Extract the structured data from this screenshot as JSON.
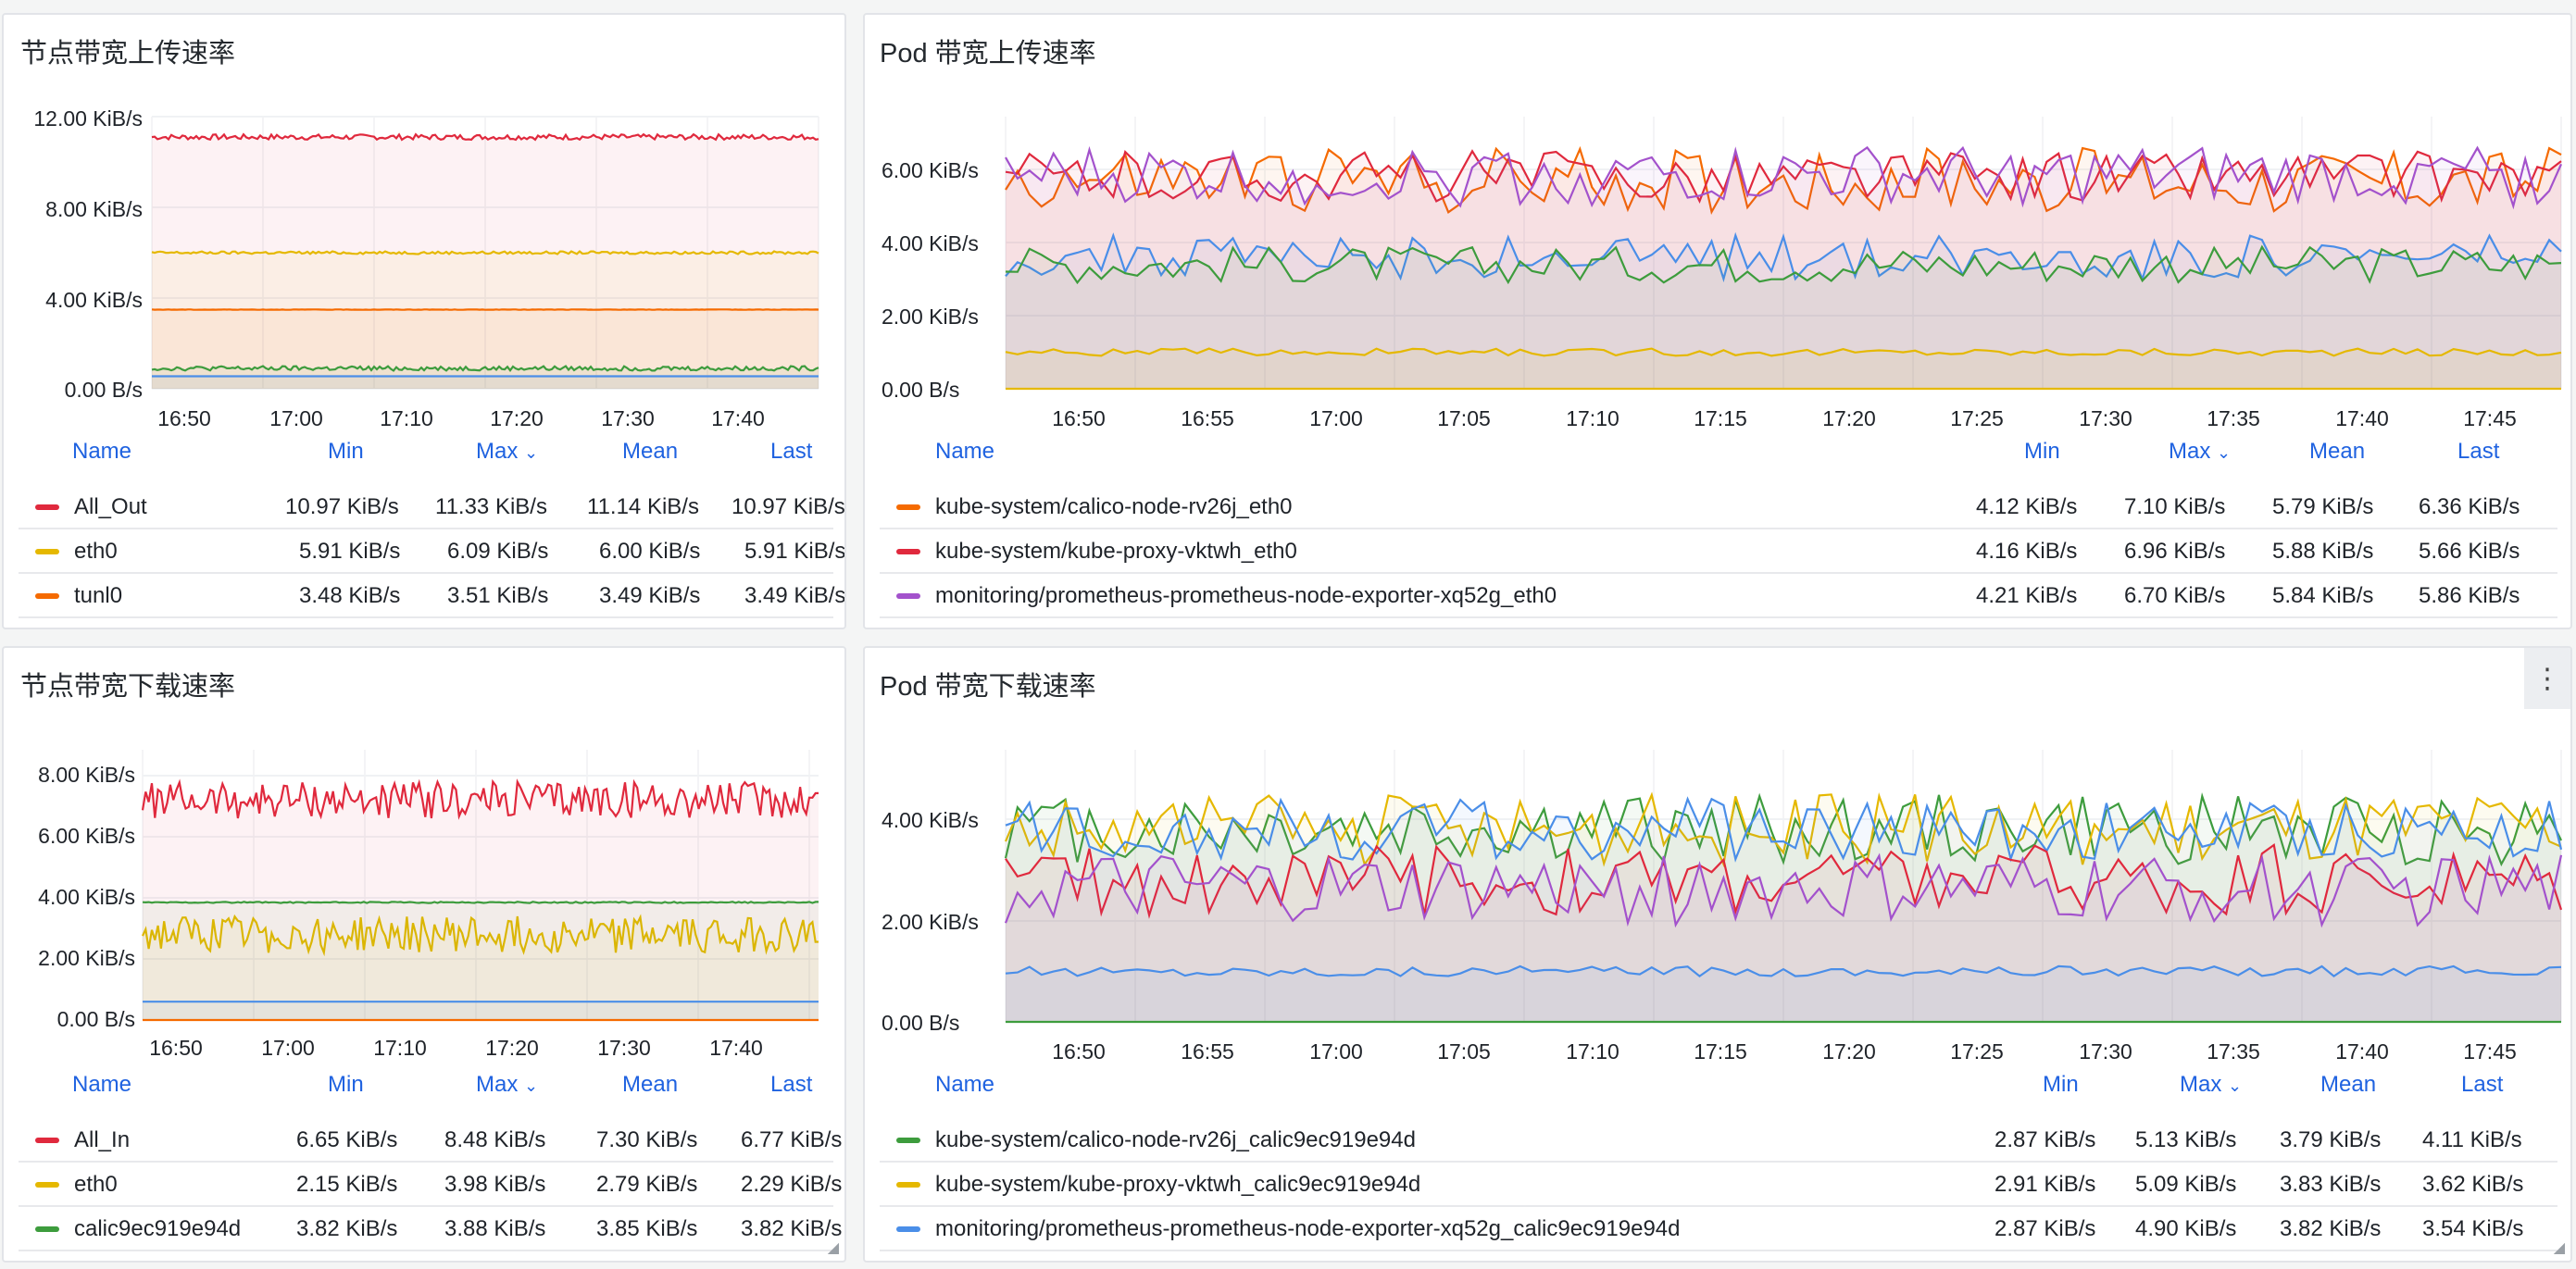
{
  "panels": [
    {
      "id": "p1",
      "title": "节点带宽上传速率",
      "yticks": [
        "12.00 KiB/s",
        "8.00 KiB/s",
        "4.00 KiB/s",
        "0.00 B/s"
      ],
      "xticks": [
        "16:50",
        "17:00",
        "17:10",
        "17:20",
        "17:30",
        "17:40"
      ],
      "headers": {
        "name": "Name",
        "min": "Min",
        "max": "Max",
        "mean": "Mean",
        "last": "Last"
      },
      "rows": [
        {
          "name": "All_Out",
          "color": "#e0293d",
          "min": "10.97 KiB/s",
          "max": "11.33 KiB/s",
          "mean": "11.14 KiB/s",
          "last": "10.97 KiB/s"
        },
        {
          "name": "eth0",
          "color": "#e5b800",
          "min": "5.91 KiB/s",
          "max": "6.09 KiB/s",
          "mean": "6.00 KiB/s",
          "last": "5.91 KiB/s"
        },
        {
          "name": "tunl0",
          "color": "#f56a00",
          "min": "3.48 KiB/s",
          "max": "3.51 KiB/s",
          "mean": "3.49 KiB/s",
          "last": "3.49 KiB/s"
        }
      ]
    },
    {
      "id": "p2",
      "title": "Pod 带宽上传速率",
      "yticks": [
        "6.00 KiB/s",
        "4.00 KiB/s",
        "2.00 KiB/s",
        "0.00 B/s"
      ],
      "xticks": [
        "16:50",
        "16:55",
        "17:00",
        "17:05",
        "17:10",
        "17:15",
        "17:20",
        "17:25",
        "17:30",
        "17:35",
        "17:40",
        "17:45"
      ],
      "headers": {
        "name": "Name",
        "min": "Min",
        "max": "Max",
        "mean": "Mean",
        "last": "Last"
      },
      "rows": [
        {
          "name": "kube-system/calico-node-rv26j_eth0",
          "color": "#f56a00",
          "min": "4.12 KiB/s",
          "max": "7.10 KiB/s",
          "mean": "5.79 KiB/s",
          "last": "6.36 KiB/s"
        },
        {
          "name": "kube-system/kube-proxy-vktwh_eth0",
          "color": "#e0293d",
          "min": "4.16 KiB/s",
          "max": "6.96 KiB/s",
          "mean": "5.88 KiB/s",
          "last": "5.66 KiB/s"
        },
        {
          "name": "monitoring/prometheus-prometheus-node-exporter-xq52g_eth0",
          "color": "#a352cc",
          "min": "4.21 KiB/s",
          "max": "6.70 KiB/s",
          "mean": "5.84 KiB/s",
          "last": "5.86 KiB/s"
        }
      ]
    },
    {
      "id": "p3",
      "title": "节点带宽下载速率",
      "yticks": [
        "8.00 KiB/s",
        "6.00 KiB/s",
        "4.00 KiB/s",
        "2.00 KiB/s",
        "0.00 B/s"
      ],
      "xticks": [
        "16:50",
        "17:00",
        "17:10",
        "17:20",
        "17:30",
        "17:40"
      ],
      "headers": {
        "name": "Name",
        "min": "Min",
        "max": "Max",
        "mean": "Mean",
        "last": "Last"
      },
      "rows": [
        {
          "name": "All_In",
          "color": "#e0293d",
          "min": "6.65 KiB/s",
          "max": "8.48 KiB/s",
          "mean": "7.30 KiB/s",
          "last": "6.77 KiB/s"
        },
        {
          "name": "eth0",
          "color": "#e5b800",
          "min": "2.15 KiB/s",
          "max": "3.98 KiB/s",
          "mean": "2.79 KiB/s",
          "last": "2.29 KiB/s"
        },
        {
          "name": "calic9ec919e94d",
          "color": "#3d9c3d",
          "min": "3.82 KiB/s",
          "max": "3.88 KiB/s",
          "mean": "3.85 KiB/s",
          "last": "3.82 KiB/s"
        }
      ]
    },
    {
      "id": "p4",
      "title": "Pod 带宽下载速率",
      "yticks": [
        "4.00 KiB/s",
        "2.00 KiB/s",
        "0.00 B/s"
      ],
      "xticks": [
        "16:50",
        "16:55",
        "17:00",
        "17:05",
        "17:10",
        "17:15",
        "17:20",
        "17:25",
        "17:30",
        "17:35",
        "17:40",
        "17:45"
      ],
      "headers": {
        "name": "Name",
        "min": "Min",
        "max": "Max",
        "mean": "Mean",
        "last": "Last"
      },
      "rows": [
        {
          "name": "kube-system/calico-node-rv26j_calic9ec919e94d",
          "color": "#3d9c3d",
          "min": "2.87 KiB/s",
          "max": "5.13 KiB/s",
          "mean": "3.79 KiB/s",
          "last": "4.11 KiB/s"
        },
        {
          "name": "kube-system/kube-proxy-vktwh_calic9ec919e94d",
          "color": "#e5b800",
          "min": "2.91 KiB/s",
          "max": "5.09 KiB/s",
          "mean": "3.83 KiB/s",
          "last": "3.62 KiB/s"
        },
        {
          "name": "monitoring/prometheus-prometheus-node-exporter-xq52g_calic9ec919e94d",
          "color": "#4a8ee8",
          "min": "2.87 KiB/s",
          "max": "4.90 KiB/s",
          "mean": "3.82 KiB/s",
          "last": "3.54 KiB/s"
        }
      ]
    }
  ],
  "icons": {
    "sort": "chevron-down-icon",
    "menu": "kebab-menu-icon"
  },
  "menu_glyph": "⋮",
  "sort_glyph": "⌄",
  "chart_data": [
    {
      "type": "line",
      "title": "节点带宽上传速率",
      "ylim": [
        0,
        12
      ],
      "y_unit": "KiB/s",
      "x_range": [
        "16:47",
        "17:48"
      ],
      "series": [
        {
          "name": "All_Out",
          "base": 11.1,
          "noise": 0.12,
          "color": "#e0293d"
        },
        {
          "name": "eth0",
          "base": 6.0,
          "noise": 0.06,
          "color": "#e5b800"
        },
        {
          "name": "tunl0",
          "base": 3.49,
          "noise": 0.01,
          "color": "#f56a00"
        },
        {
          "name": "",
          "base": 0.9,
          "noise": 0.1,
          "color": "#3d9c3d"
        },
        {
          "name": "",
          "base": 0.55,
          "noise": 0.0,
          "color": "#4a8ee8"
        }
      ]
    },
    {
      "type": "line",
      "title": "Pod 带宽上传速率",
      "ylim": [
        0,
        7
      ],
      "y_unit": "KiB/s",
      "x_range": [
        "16:47",
        "17:48"
      ],
      "series": [
        {
          "name": "kube-system/calico-node-rv26j_eth0",
          "base": 5.7,
          "noise": 0.9,
          "color": "#f56a00"
        },
        {
          "name": "kube-system/kube-proxy-vktwh_eth0",
          "base": 5.8,
          "noise": 0.7,
          "color": "#e0293d"
        },
        {
          "name": "monitoring/prometheus-prometheus-node-exporter-xq52g_eth0",
          "base": 5.8,
          "noise": 0.8,
          "color": "#a352cc"
        },
        {
          "name": "",
          "base": 3.6,
          "noise": 0.6,
          "color": "#4a8ee8"
        },
        {
          "name": "",
          "base": 3.4,
          "noise": 0.5,
          "color": "#3d9c3d"
        },
        {
          "name": "",
          "base": 1.0,
          "noise": 0.1,
          "color": "#e5b800"
        },
        {
          "name": "",
          "base": 0.0,
          "noise": 0.0,
          "color": "#e5b800"
        }
      ]
    },
    {
      "type": "line",
      "title": "节点带宽下载速率",
      "ylim": [
        0,
        8.5
      ],
      "y_unit": "KiB/s",
      "x_range": [
        "16:48",
        "17:48"
      ],
      "series": [
        {
          "name": "All_In",
          "base": 7.2,
          "noise": 0.6,
          "color": "#e0293d"
        },
        {
          "name": "eth0",
          "base": 2.8,
          "noise": 0.6,
          "color": "#e5b800"
        },
        {
          "name": "calic9ec919e94d",
          "base": 3.85,
          "noise": 0.02,
          "color": "#3d9c3d"
        },
        {
          "name": "",
          "base": 0.6,
          "noise": 0.0,
          "color": "#4a8ee8"
        },
        {
          "name": "",
          "base": 0.0,
          "noise": 0.0,
          "color": "#f56a00"
        }
      ]
    },
    {
      "type": "line",
      "title": "Pod 带宽下载速率",
      "ylim": [
        0,
        5
      ],
      "y_unit": "KiB/s",
      "x_range": [
        "16:47",
        "17:48"
      ],
      "series": [
        {
          "name": "kube-system/calico-node-rv26j_calic9ec919e94d",
          "base": 3.8,
          "noise": 0.7,
          "color": "#3d9c3d"
        },
        {
          "name": "kube-system/kube-proxy-vktwh_calic9ec919e94d",
          "base": 3.8,
          "noise": 0.7,
          "color": "#e5b800"
        },
        {
          "name": "monitoring/prometheus-prometheus-node-exporter-xq52g_calic9ec919e94d",
          "base": 3.8,
          "noise": 0.6,
          "color": "#4a8ee8"
        },
        {
          "name": "",
          "base": 2.8,
          "noise": 0.7,
          "color": "#e0293d"
        },
        {
          "name": "",
          "base": 2.6,
          "noise": 0.7,
          "color": "#a352cc"
        },
        {
          "name": "",
          "base": 1.0,
          "noise": 0.1,
          "color": "#4a8ee8"
        },
        {
          "name": "",
          "base": 0.0,
          "noise": 0.0,
          "color": "#3d9c3d"
        }
      ]
    }
  ]
}
